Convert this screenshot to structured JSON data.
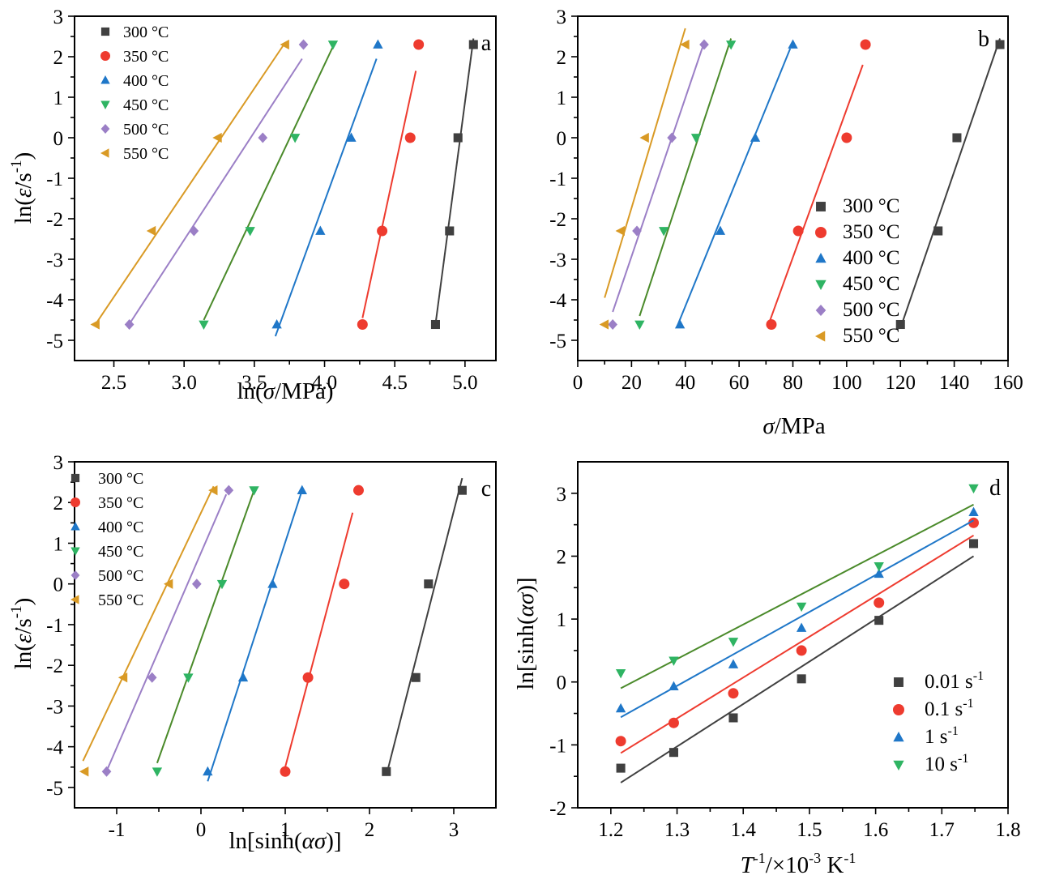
{
  "temps": [
    "300 °C",
    "350 °C",
    "400 °C",
    "450 °C",
    "500 °C",
    "550 °C"
  ],
  "temp_colors": [
    "#404040",
    "#ee3b2f",
    "#1f77c8",
    "#2fb463",
    "#9b7fc6",
    "#d99a25"
  ],
  "rates": [
    "0.01 s",
    "0.1 s",
    "1 s",
    "10 s"
  ],
  "rate_sup": "-1",
  "rate_colors": [
    "#404040",
    "#ee3b2f",
    "#1f77c8",
    "#2fb463"
  ],
  "fit_colors_d": [
    "#404040",
    "#ee3b2f",
    "#1f77c8",
    "#4a8a2a"
  ],
  "fit_colors": [
    "#404040",
    "#ee3b2f",
    "#1f77c8",
    "#4a8a2a",
    "#9b7fc6",
    "#d99a25"
  ],
  "markers": {
    "temps": [
      "square",
      "circle",
      "triangle-up",
      "triangle-down",
      "diamond",
      "triangle-left"
    ],
    "rates": [
      "square",
      "circle",
      "triangle-up",
      "triangle-down"
    ]
  },
  "chart_data": [
    {
      "panel": "a",
      "type": "scatter",
      "xlabel": {
        "pre": "ln(",
        "italic": "σ",
        "post": "/MPa)"
      },
      "ylabel": "ln(ε̇/s⁻¹)",
      "xlim": [
        2.22,
        5.22
      ],
      "ylim": [
        -5.5,
        3
      ],
      "xticks": [
        2.5,
        3.0,
        3.5,
        4.0,
        4.5,
        5.0
      ],
      "xticklabels": [
        "2.5",
        "3.0",
        "3.5",
        "4.0",
        "4.5",
        "5.0"
      ],
      "yticks": [
        -5,
        -4,
        -3,
        -2,
        -1,
        0,
        1,
        2,
        3
      ],
      "legend": "top-left",
      "series": [
        {
          "name": "300 °C",
          "points": [
            [
              4.79,
              -4.61
            ],
            [
              4.89,
              -2.3
            ],
            [
              4.95,
              0
            ],
            [
              5.06,
              2.3
            ]
          ],
          "fit": [
            [
              4.79,
              -4.6
            ],
            [
              5.06,
              2.45
            ]
          ]
        },
        {
          "name": "350 °C",
          "points": [
            [
              4.27,
              -4.61
            ],
            [
              4.41,
              -2.3
            ],
            [
              4.61,
              0
            ],
            [
              4.67,
              2.3
            ]
          ],
          "fit": [
            [
              4.27,
              -4.45
            ],
            [
              4.65,
              1.65
            ]
          ]
        },
        {
          "name": "400 °C",
          "points": [
            [
              3.66,
              -4.61
            ],
            [
              3.97,
              -2.3
            ],
            [
              4.19,
              0
            ],
            [
              4.38,
              2.3
            ]
          ],
          "fit": [
            [
              3.65,
              -4.9
            ],
            [
              4.37,
              1.95
            ]
          ]
        },
        {
          "name": "450 °C",
          "points": [
            [
              3.14,
              -4.61
            ],
            [
              3.47,
              -2.3
            ],
            [
              3.79,
              0
            ],
            [
              4.06,
              2.3
            ]
          ],
          "fit": [
            [
              3.14,
              -4.5
            ],
            [
              4.06,
              2.25
            ]
          ]
        },
        {
          "name": "500 °C",
          "points": [
            [
              2.61,
              -4.61
            ],
            [
              3.07,
              -2.3
            ],
            [
              3.56,
              0
            ],
            [
              3.85,
              2.3
            ]
          ],
          "fit": [
            [
              2.61,
              -4.6
            ],
            [
              3.84,
              1.95
            ]
          ]
        },
        {
          "name": "550 °C",
          "points": [
            [
              2.37,
              -4.61
            ],
            [
              2.77,
              -2.3
            ],
            [
              3.24,
              0
            ],
            [
              3.72,
              2.3
            ]
          ],
          "fit": [
            [
              2.37,
              -4.6
            ],
            [
              3.72,
              2.35
            ]
          ]
        }
      ]
    },
    {
      "panel": "b",
      "type": "scatter",
      "xlabel": {
        "pre": "",
        "italic": "σ",
        "post": "/MPa"
      },
      "ylabel": "",
      "xlim": [
        0,
        160
      ],
      "ylim": [
        -5.5,
        3
      ],
      "xticks": [
        0,
        20,
        40,
        60,
        80,
        100,
        120,
        140,
        160
      ],
      "xticklabels": [
        "0",
        "20",
        "40",
        "60",
        "80",
        "100",
        "120",
        "140",
        "160"
      ],
      "yticks": [
        -5,
        -4,
        -3,
        -2,
        -1,
        0,
        1,
        2,
        3
      ],
      "legend": "bottom-right",
      "series": [
        {
          "name": "300 °C",
          "points": [
            [
              120,
              -4.61
            ],
            [
              134,
              -2.3
            ],
            [
              141,
              0
            ],
            [
              157,
              2.3
            ]
          ],
          "fit": [
            [
              120,
              -4.7
            ],
            [
              157,
              2.45
            ]
          ]
        },
        {
          "name": "350 °C",
          "points": [
            [
              72,
              -4.61
            ],
            [
              82,
              -2.3
            ],
            [
              100,
              0
            ],
            [
              107,
              2.3
            ]
          ],
          "fit": [
            [
              71,
              -4.6
            ],
            [
              106,
              1.8
            ]
          ]
        },
        {
          "name": "400 °C",
          "points": [
            [
              38,
              -4.61
            ],
            [
              53,
              -2.3
            ],
            [
              66,
              0
            ],
            [
              80,
              2.3
            ]
          ],
          "fit": [
            [
              37,
              -4.65
            ],
            [
              79,
              2.2
            ]
          ]
        },
        {
          "name": "450 °C",
          "points": [
            [
              23,
              -4.61
            ],
            [
              32,
              -2.3
            ],
            [
              44,
              0
            ],
            [
              57,
              2.3
            ]
          ],
          "fit": [
            [
              23,
              -4.4
            ],
            [
              57,
              2.45
            ]
          ]
        },
        {
          "name": "500 °C",
          "points": [
            [
              13,
              -4.61
            ],
            [
              22,
              -2.3
            ],
            [
              35,
              0
            ],
            [
              47,
              2.3
            ]
          ],
          "fit": [
            [
              13,
              -4.3
            ],
            [
              47,
              2.35
            ]
          ]
        },
        {
          "name": "550 °C",
          "points": [
            [
              10,
              -4.61
            ],
            [
              16,
              -2.3
            ],
            [
              25,
              0
            ],
            [
              40,
              2.3
            ]
          ],
          "fit": [
            [
              10,
              -3.95
            ],
            [
              40,
              2.7
            ]
          ]
        }
      ]
    },
    {
      "panel": "c",
      "type": "scatter",
      "xlabel": {
        "pre": "ln[sinh(",
        "italic": "ασ",
        "post": ")]"
      },
      "ylabel": "ln(ε̇/s⁻¹)",
      "xlim": [
        -1.5,
        3.5
      ],
      "ylim": [
        -5.5,
        3
      ],
      "xticks": [
        -1,
        0,
        1,
        2,
        3
      ],
      "xticklabels": [
        "-1",
        "0",
        "1",
        "2",
        "3"
      ],
      "yticks": [
        -5,
        -4,
        -3,
        -2,
        -1,
        0,
        1,
        2,
        3
      ],
      "legend": "top-left",
      "series": [
        {
          "name": "300 °C",
          "points": [
            [
              2.2,
              -4.61
            ],
            [
              2.55,
              -2.3
            ],
            [
              2.7,
              0
            ],
            [
              3.1,
              2.3
            ]
          ],
          "fit": [
            [
              2.2,
              -4.7
            ],
            [
              3.1,
              2.6
            ]
          ]
        },
        {
          "name": "350 °C",
          "points": [
            [
              1.0,
              -4.61
            ],
            [
              1.27,
              -2.3
            ],
            [
              1.7,
              0
            ],
            [
              1.87,
              2.3
            ]
          ],
          "fit": [
            [
              1.0,
              -4.5
            ],
            [
              1.8,
              1.75
            ]
          ]
        },
        {
          "name": "400 °C",
          "points": [
            [
              0.08,
              -4.61
            ],
            [
              0.5,
              -2.3
            ],
            [
              0.85,
              0
            ],
            [
              1.2,
              2.3
            ]
          ],
          "fit": [
            [
              0.08,
              -4.85
            ],
            [
              1.2,
              2.3
            ]
          ]
        },
        {
          "name": "450 °C",
          "points": [
            [
              -0.52,
              -4.61
            ],
            [
              -0.15,
              -2.3
            ],
            [
              0.25,
              0
            ],
            [
              0.63,
              2.3
            ]
          ],
          "fit": [
            [
              -0.52,
              -4.4
            ],
            [
              0.63,
              2.3
            ]
          ]
        },
        {
          "name": "500 °C",
          "points": [
            [
              -1.12,
              -4.61
            ],
            [
              -0.58,
              -2.3
            ],
            [
              -0.05,
              0
            ],
            [
              0.33,
              2.3
            ]
          ],
          "fit": [
            [
              -1.12,
              -4.6
            ],
            [
              0.3,
              2.2
            ]
          ]
        },
        {
          "name": "550 °C",
          "points": [
            [
              -1.38,
              -4.61
            ],
            [
              -0.92,
              -2.3
            ],
            [
              -0.38,
              0
            ],
            [
              0.15,
              2.3
            ]
          ],
          "fit": [
            [
              -1.4,
              -4.35
            ],
            [
              0.15,
              2.4
            ]
          ]
        }
      ]
    },
    {
      "panel": "d",
      "type": "scatter",
      "xlabel": {
        "pre": "",
        "italic": "T",
        "post": "/×10  K"
      },
      "ylabel": "ln[sinh(ασ)]",
      "xlim": [
        1.15,
        1.8
      ],
      "ylim": [
        -2,
        3.5
      ],
      "xticks": [
        1.2,
        1.3,
        1.4,
        1.5,
        1.6,
        1.7,
        1.8
      ],
      "xticklabels": [
        "1.2",
        "1.3",
        "1.4",
        "1.5",
        "1.6",
        "1.7",
        "1.8"
      ],
      "yticks": [
        -2,
        -1,
        0,
        1,
        2,
        3
      ],
      "legend": "bottom-right",
      "series": [
        {
          "name": "0.01 s⁻¹",
          "points": [
            [
              1.215,
              -1.37
            ],
            [
              1.295,
              -1.12
            ],
            [
              1.385,
              -0.57
            ],
            [
              1.488,
              0.05
            ],
            [
              1.605,
              0.98
            ],
            [
              1.748,
              2.2
            ]
          ],
          "fit": [
            [
              1.215,
              -1.6
            ],
            [
              1.748,
              2.0
            ]
          ]
        },
        {
          "name": "0.1 s⁻¹",
          "points": [
            [
              1.215,
              -0.94
            ],
            [
              1.295,
              -0.65
            ],
            [
              1.385,
              -0.18
            ],
            [
              1.488,
              0.5
            ],
            [
              1.605,
              1.26
            ],
            [
              1.748,
              2.53
            ]
          ],
          "fit": [
            [
              1.215,
              -1.13
            ],
            [
              1.748,
              2.33
            ]
          ]
        },
        {
          "name": "1 s⁻¹",
          "points": [
            [
              1.215,
              -0.42
            ],
            [
              1.295,
              -0.07
            ],
            [
              1.385,
              0.28
            ],
            [
              1.488,
              0.86
            ],
            [
              1.605,
              1.72
            ],
            [
              1.748,
              2.7
            ]
          ],
          "fit": [
            [
              1.215,
              -0.56
            ],
            [
              1.748,
              2.57
            ]
          ]
        },
        {
          "name": "10 s⁻¹",
          "points": [
            [
              1.215,
              0.14
            ],
            [
              1.295,
              0.34
            ],
            [
              1.385,
              0.64
            ],
            [
              1.488,
              1.2
            ],
            [
              1.605,
              1.84
            ],
            [
              1.748,
              3.08
            ]
          ],
          "fit": [
            [
              1.215,
              -0.1
            ],
            [
              1.748,
              2.82
            ]
          ]
        }
      ]
    }
  ]
}
